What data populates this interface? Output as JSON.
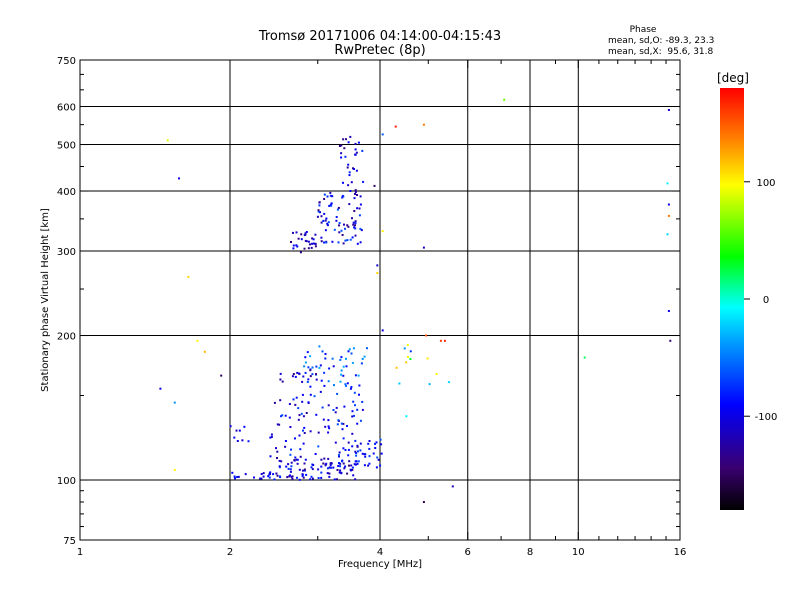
{
  "chart_data": {
    "type": "scatter",
    "title": "Tromsø 20171006 04:14:00-04:15:43",
    "subtitle": "RwPretec (8p)",
    "xlabel": "Frequency [MHz]",
    "ylabel": "Stationary phase Virtual Height [km]",
    "xscale": "log",
    "yscale": "log",
    "xlim": [
      1,
      16
    ],
    "ylim": [
      75,
      750
    ],
    "xticks": [
      {
        "value": 1,
        "label": "1"
      },
      {
        "value": 2,
        "label": "2"
      },
      {
        "value": 4,
        "label": "4"
      },
      {
        "value": 6,
        "label": "6"
      },
      {
        "value": 8,
        "label": "8"
      },
      {
        "value": 10,
        "label": "10"
      },
      {
        "value": 16,
        "label": "16"
      }
    ],
    "xgrid": [
      2,
      4,
      6,
      8,
      10
    ],
    "yticks": [
      {
        "value": 75,
        "label": "75"
      },
      {
        "value": 100,
        "label": "100"
      },
      {
        "value": 200,
        "label": "200"
      },
      {
        "value": 300,
        "label": "300"
      },
      {
        "value": 400,
        "label": "400"
      },
      {
        "value": 500,
        "label": "500"
      },
      {
        "value": 600,
        "label": "600"
      },
      {
        "value": 750,
        "label": "750"
      }
    ],
    "ygrid": [
      100,
      200,
      300,
      400,
      500,
      600
    ],
    "grid": true,
    "phase_stats": {
      "header": "Phase",
      "line_o": "mean, sd,O: -89.3, 23.3",
      "line_x": "mean, sd,X:  95.6, 31.8"
    },
    "colorbar": {
      "label": "[deg]",
      "min": -180,
      "max": 180,
      "ticks": [
        {
          "value": 100,
          "label": "100"
        },
        {
          "value": 0,
          "label": "0"
        },
        {
          "value": -100,
          "label": "-100"
        }
      ]
    },
    "clusters": [
      {
        "fmin": 1.95,
        "fmax": 2.4,
        "hmin": 100,
        "hmax": 104,
        "n": 14,
        "pmin": -120,
        "pmax": -80
      },
      {
        "fmin": 2.4,
        "fmax": 3.6,
        "hmin": 100,
        "hmax": 112,
        "n": 110,
        "pmin": -140,
        "pmax": -70
      },
      {
        "fmin": 3.6,
        "fmax": 4.05,
        "hmin": 106,
        "hmax": 122,
        "n": 28,
        "pmin": -110,
        "pmax": -60
      },
      {
        "fmin": 2.0,
        "fmax": 2.2,
        "hmin": 118,
        "hmax": 130,
        "n": 8,
        "pmin": -120,
        "pmax": -80
      },
      {
        "fmin": 2.4,
        "fmax": 3.7,
        "hmin": 112,
        "hmax": 150,
        "n": 90,
        "pmin": -130,
        "pmax": -60
      },
      {
        "fmin": 2.8,
        "fmax": 3.8,
        "hmin": 150,
        "hmax": 190,
        "n": 60,
        "pmin": -100,
        "pmax": -30
      },
      {
        "fmin": 2.5,
        "fmax": 3.0,
        "hmin": 160,
        "hmax": 170,
        "n": 16,
        "pmin": -140,
        "pmax": -90
      },
      {
        "fmin": 2.65,
        "fmax": 3.0,
        "hmin": 296,
        "hmax": 330,
        "n": 30,
        "pmin": -140,
        "pmax": -80
      },
      {
        "fmin": 3.0,
        "fmax": 3.7,
        "hmin": 310,
        "hmax": 400,
        "n": 80,
        "pmin": -140,
        "pmax": -60
      },
      {
        "fmin": 3.3,
        "fmax": 3.7,
        "hmin": 400,
        "hmax": 520,
        "n": 30,
        "pmin": -140,
        "pmax": -70
      },
      {
        "fmin": 4.3,
        "fmax": 5.2,
        "hmin": 135,
        "hmax": 195,
        "n": 12,
        "pmin": -90,
        "pmax": 160
      }
    ],
    "points": [
      {
        "x": 1.45,
        "y": 155,
        "phase": -100
      },
      {
        "x": 1.55,
        "y": 145,
        "phase": -40
      },
      {
        "x": 1.58,
        "y": 425,
        "phase": -100
      },
      {
        "x": 1.65,
        "y": 265,
        "phase": 110
      },
      {
        "x": 1.78,
        "y": 185,
        "phase": 120
      },
      {
        "x": 1.92,
        "y": 165,
        "phase": -150
      },
      {
        "x": 1.55,
        "y": 105,
        "phase": 100
      },
      {
        "x": 1.5,
        "y": 510,
        "phase": 90
      },
      {
        "x": 1.72,
        "y": 195,
        "phase": 100
      },
      {
        "x": 4.05,
        "y": 205,
        "phase": -100
      },
      {
        "x": 3.95,
        "y": 280,
        "phase": -110
      },
      {
        "x": 3.95,
        "y": 270,
        "phase": 110
      },
      {
        "x": 4.05,
        "y": 330,
        "phase": 100
      },
      {
        "x": 4.3,
        "y": 545,
        "phase": 170
      },
      {
        "x": 4.9,
        "y": 550,
        "phase": 140
      },
      {
        "x": 4.9,
        "y": 305,
        "phase": -110
      },
      {
        "x": 4.9,
        "y": 90,
        "phase": -150
      },
      {
        "x": 5.6,
        "y": 97,
        "phase": -120
      },
      {
        "x": 5.3,
        "y": 195,
        "phase": 160
      },
      {
        "x": 4.95,
        "y": 200,
        "phase": 150
      },
      {
        "x": 5.5,
        "y": 160,
        "phase": -20
      },
      {
        "x": 7.1,
        "y": 620,
        "phase": 60
      },
      {
        "x": 10.3,
        "y": 180,
        "phase": 20
      },
      {
        "x": 4.05,
        "y": 525,
        "phase": -60
      },
      {
        "x": 3.9,
        "y": 410,
        "phase": -150
      },
      {
        "x": 15.2,
        "y": 590,
        "phase": -110
      },
      {
        "x": 15.1,
        "y": 415,
        "phase": -10
      },
      {
        "x": 15.2,
        "y": 375,
        "phase": -100
      },
      {
        "x": 15.2,
        "y": 355,
        "phase": 140
      },
      {
        "x": 15.1,
        "y": 325,
        "phase": -20
      },
      {
        "x": 15.2,
        "y": 225,
        "phase": -100
      },
      {
        "x": 15.3,
        "y": 195,
        "phase": -140
      },
      {
        "x": 5.4,
        "y": 195,
        "phase": 170
      }
    ]
  }
}
